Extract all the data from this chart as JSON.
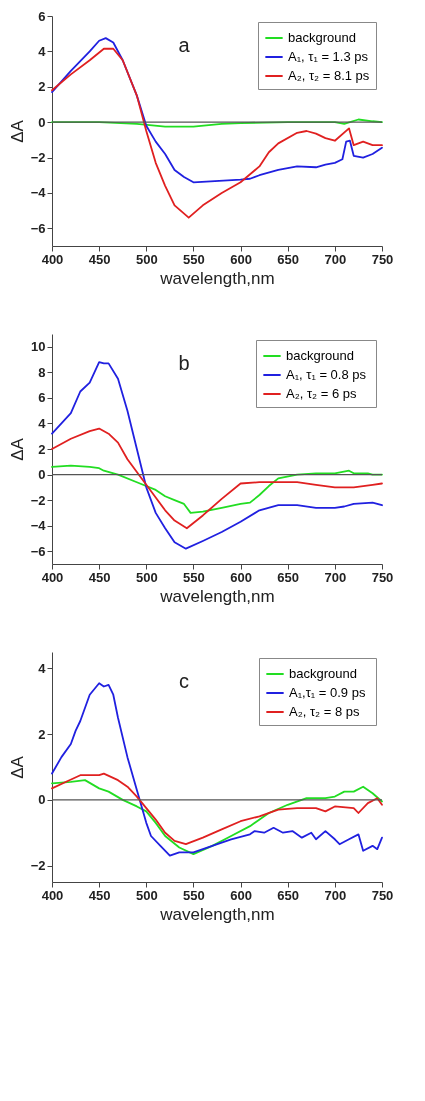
{
  "chart_data": [
    {
      "type": "line",
      "xlabel": "wavelength,nm",
      "ylabel": "ΔA",
      "annotations": [
        "a"
      ],
      "legend": "top right",
      "xlim": [
        400,
        750
      ],
      "xticks": [
        400,
        450,
        500,
        550,
        600,
        650,
        700,
        750
      ],
      "ylim": [
        -7,
        6
      ],
      "yticks": [
        -6,
        -4,
        -2,
        0,
        2,
        4,
        6
      ],
      "ref_lines": [
        {
          "axis": "y",
          "value": 0
        }
      ],
      "series": [
        {
          "name": "background",
          "color": "#22dd22",
          "x": [
            400,
            450,
            490,
            520,
            550,
            580,
            600,
            650,
            700,
            710,
            725,
            740,
            750
          ],
          "values": [
            0,
            0,
            -0.1,
            -0.25,
            -0.25,
            -0.1,
            -0.05,
            0,
            0,
            -0.1,
            0.15,
            0.05,
            0
          ]
        },
        {
          "name": "A₁, τ₁ = 1.3 ps",
          "color": "#2020e0",
          "x": [
            400,
            420,
            440,
            450,
            457,
            465,
            475,
            490,
            500,
            510,
            520,
            530,
            540,
            550,
            600,
            610,
            620,
            640,
            660,
            680,
            690,
            700,
            708,
            712,
            716,
            720,
            730,
            740,
            750
          ],
          "values": [
            1.7,
            2.9,
            4.0,
            4.6,
            4.75,
            4.5,
            3.5,
            1.5,
            -0.2,
            -1.1,
            -1.8,
            -2.7,
            -3.1,
            -3.4,
            -3.25,
            -3.2,
            -3.0,
            -2.7,
            -2.5,
            -2.55,
            -2.4,
            -2.3,
            -2.1,
            -1.1,
            -1.05,
            -1.9,
            -2.0,
            -1.8,
            -1.45
          ]
        },
        {
          "name": "A₂, τ₂ = 8.1 ps",
          "color": "#e02020",
          "x": [
            400,
            420,
            440,
            455,
            465,
            475,
            490,
            500,
            510,
            520,
            530,
            545,
            560,
            580,
            600,
            620,
            630,
            640,
            660,
            670,
            680,
            690,
            700,
            715,
            720,
            730,
            740,
            750
          ],
          "values": [
            1.8,
            2.7,
            3.5,
            4.15,
            4.15,
            3.5,
            1.5,
            -0.5,
            -2.3,
            -3.6,
            -4.7,
            -5.4,
            -4.7,
            -4.0,
            -3.4,
            -2.5,
            -1.7,
            -1.2,
            -0.6,
            -0.5,
            -0.65,
            -0.9,
            -1.05,
            -0.35,
            -1.3,
            -1.1,
            -1.3,
            -1.3
          ]
        }
      ]
    },
    {
      "type": "line",
      "xlabel": "wavelength,nm",
      "ylabel": "ΔA",
      "annotations": [
        "b"
      ],
      "legend": "top right",
      "xlim": [
        400,
        750
      ],
      "xticks": [
        400,
        450,
        500,
        550,
        600,
        650,
        700,
        750
      ],
      "ylim": [
        -7,
        11
      ],
      "yticks": [
        -6,
        -4,
        -2,
        0,
        2,
        4,
        6,
        8,
        10
      ],
      "ref_lines": [
        {
          "axis": "y",
          "value": 0
        }
      ],
      "series": [
        {
          "name": "background",
          "color": "#22dd22",
          "x": [
            400,
            420,
            440,
            450,
            455,
            470,
            490,
            510,
            520,
            530,
            540,
            547,
            560,
            580,
            600,
            610,
            620,
            630,
            640,
            660,
            680,
            700,
            715,
            720,
            735,
            740,
            750
          ],
          "values": [
            0.6,
            0.7,
            0.6,
            0.5,
            0.3,
            0.0,
            -0.6,
            -1.2,
            -1.7,
            -2.0,
            -2.3,
            -3.0,
            -2.9,
            -2.6,
            -2.3,
            -2.2,
            -1.6,
            -0.9,
            -0.3,
            0.0,
            0.1,
            0.1,
            0.3,
            0.1,
            0.1,
            0.0,
            0.0
          ]
        },
        {
          "name": "A₁, τ₁ =  0.8 ps",
          "color": "#2020e0",
          "x": [
            400,
            420,
            430,
            440,
            450,
            455,
            460,
            470,
            480,
            490,
            500,
            510,
            520,
            530,
            542,
            560,
            580,
            600,
            620,
            640,
            660,
            680,
            700,
            710,
            720,
            740,
            750
          ],
          "values": [
            3.2,
            4.8,
            6.5,
            7.2,
            8.8,
            8.7,
            8.7,
            7.5,
            5.0,
            2.0,
            -1.0,
            -3.0,
            -4.2,
            -5.3,
            -5.8,
            -5.2,
            -4.5,
            -3.7,
            -2.8,
            -2.4,
            -2.4,
            -2.6,
            -2.6,
            -2.5,
            -2.3,
            -2.2,
            -2.4
          ]
        },
        {
          "name": "A₂, τ₂ =   6 ps",
          "color": "#e02020",
          "x": [
            400,
            420,
            440,
            450,
            460,
            470,
            480,
            490,
            500,
            510,
            520,
            530,
            543,
            560,
            580,
            600,
            620,
            640,
            660,
            680,
            700,
            720,
            740,
            750
          ],
          "values": [
            2.0,
            2.8,
            3.4,
            3.6,
            3.2,
            2.5,
            1.2,
            0.2,
            -0.8,
            -1.8,
            -2.8,
            -3.6,
            -4.2,
            -3.2,
            -1.9,
            -0.7,
            -0.6,
            -0.6,
            -0.6,
            -0.8,
            -1.0,
            -1.0,
            -0.8,
            -0.7
          ]
        }
      ]
    },
    {
      "type": "line",
      "xlabel": "wavelength,nm",
      "ylabel": "ΔA",
      "annotations": [
        "c"
      ],
      "legend": "top right",
      "xlim": [
        400,
        750
      ],
      "xticks": [
        400,
        450,
        500,
        550,
        600,
        650,
        700,
        750
      ],
      "ylim": [
        -2.5,
        4.5
      ],
      "yticks": [
        -2,
        0,
        2,
        4
      ],
      "ref_lines": [
        {
          "axis": "y",
          "value": 0
        }
      ],
      "series": [
        {
          "name": "background",
          "color": "#22dd22",
          "x": [
            400,
            420,
            435,
            450,
            460,
            475,
            490,
            500,
            510,
            520,
            535,
            550,
            570,
            590,
            610,
            630,
            650,
            670,
            690,
            700,
            710,
            720,
            730,
            740,
            750
          ],
          "values": [
            0.5,
            0.55,
            0.6,
            0.35,
            0.25,
            0.0,
            -0.2,
            -0.35,
            -0.7,
            -1.1,
            -1.45,
            -1.65,
            -1.4,
            -1.1,
            -0.8,
            -0.4,
            -0.15,
            0.05,
            0.05,
            0.1,
            0.25,
            0.25,
            0.4,
            0.2,
            -0.05
          ]
        },
        {
          "name": "A₁,τ₁ =  0.9 ps",
          "color": "#2020e0",
          "x": [
            400,
            410,
            420,
            425,
            430,
            440,
            450,
            455,
            460,
            465,
            470,
            480,
            490,
            500,
            505,
            515,
            525,
            535,
            550,
            570,
            590,
            610,
            615,
            625,
            635,
            645,
            655,
            665,
            675,
            680,
            690,
            700,
            705,
            715,
            725,
            730,
            740,
            745,
            750
          ],
          "values": [
            0.8,
            1.3,
            1.7,
            2.1,
            2.4,
            3.2,
            3.55,
            3.45,
            3.5,
            3.2,
            2.5,
            1.3,
            0.3,
            -0.7,
            -1.1,
            -1.4,
            -1.7,
            -1.6,
            -1.6,
            -1.4,
            -1.2,
            -1.05,
            -0.95,
            -1.0,
            -0.85,
            -1.0,
            -0.95,
            -1.15,
            -1.0,
            -1.2,
            -0.95,
            -1.2,
            -1.35,
            -1.2,
            -1.05,
            -1.55,
            -1.4,
            -1.5,
            -1.15
          ]
        },
        {
          "name": "A₂, τ₂ =   8 ps",
          "color": "#e02020",
          "x": [
            400,
            415,
            430,
            450,
            455,
            470,
            480,
            490,
            500,
            510,
            520,
            530,
            542,
            560,
            580,
            600,
            620,
            640,
            660,
            680,
            690,
            700,
            720,
            725,
            735,
            745,
            750
          ],
          "values": [
            0.35,
            0.55,
            0.75,
            0.75,
            0.8,
            0.6,
            0.4,
            0.1,
            -0.25,
            -0.6,
            -1.0,
            -1.25,
            -1.35,
            -1.15,
            -0.9,
            -0.65,
            -0.5,
            -0.3,
            -0.25,
            -0.25,
            -0.35,
            -0.2,
            -0.25,
            -0.4,
            -0.1,
            0.05,
            -0.15
          ]
        }
      ]
    }
  ]
}
